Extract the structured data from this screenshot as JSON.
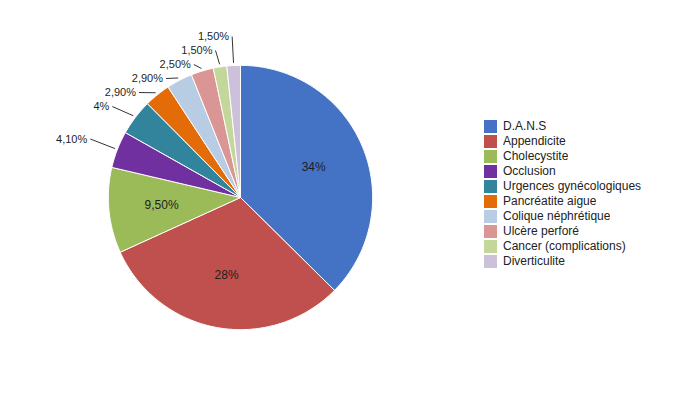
{
  "chart_data": {
    "type": "pie",
    "categories": [
      "D.A.N.S",
      "Appendicite",
      "Cholecystite",
      "Occlusion",
      "Urgences gynécologiques",
      "Pancréatite aigue",
      "Colique néphrétique",
      "Ulcère perforé",
      "Cancer (complications)",
      "Diverticulite"
    ],
    "values": [
      34,
      28,
      9.5,
      4.1,
      4,
      2.9,
      2.9,
      2.5,
      1.5,
      1.5
    ],
    "value_labels": [
      "34%",
      "28%",
      "9,50%",
      "4,10%",
      "4%",
      "2,90%",
      "2,90%",
      "2,50%",
      "1,50%",
      "1,50%"
    ],
    "colors": [
      "#4472C4",
      "#C0504D",
      "#9BBB59",
      "#7030A0",
      "#31849B",
      "#E36C09",
      "#B8CCE4",
      "#DA9694",
      "#C4D79B",
      "#CCC0DA"
    ],
    "data_labels": true,
    "legend": "right"
  }
}
